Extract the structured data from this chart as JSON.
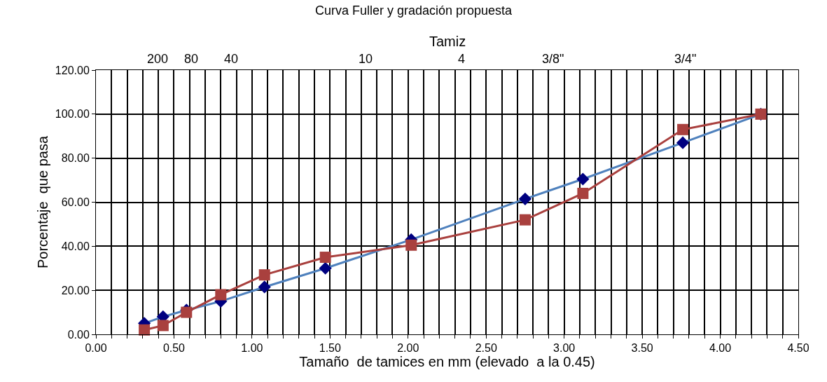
{
  "chart_data": {
    "type": "line",
    "title": "Curva Fuller y gradación propuesta",
    "xlabel": "Tamaño  de tamices en mm (elevado  a la 0.45)",
    "ylabel": "Porcentaje  que pasa",
    "annotations": [
      "Tamiz",
      "200",
      "80",
      "40",
      "10",
      "4",
      "3/8\"",
      "3/4\""
    ],
    "x": [
      0.31,
      0.43,
      0.58,
      0.8,
      1.08,
      1.47,
      2.02,
      2.75,
      3.12,
      3.76,
      4.26
    ],
    "series": [
      {
        "color": "#4f81bd",
        "marker": "diamond",
        "colors": [
          "#000080",
          "#000080",
          "#000080",
          "#000080",
          "#000080",
          "#000080",
          "#000080",
          "#000080",
          "#000080",
          "#000080",
          "#000080"
        ],
        "values": [
          5,
          8,
          11,
          15,
          21.5,
          30,
          43,
          61.5,
          70.5,
          87,
          100
        ]
      },
      {
        "color": "#a9403e",
        "marker": "square",
        "values": [
          2,
          4,
          10,
          18,
          27,
          35,
          40.5,
          52,
          64,
          93,
          100
        ]
      }
    ],
    "xlim": [
      0,
      4.5
    ],
    "xticks": [
      {
        "value": 0,
        "label": "0.00"
      },
      {
        "value": 0.1,
        "label": null
      },
      {
        "value": 0.2,
        "label": null
      },
      {
        "value": 0.3,
        "label": null
      },
      {
        "value": 0.4,
        "label": null
      },
      {
        "value": 0.5,
        "label": "0.50"
      },
      {
        "value": 0.6,
        "label": null
      },
      {
        "value": 0.7,
        "label": null
      },
      {
        "value": 0.8,
        "label": null
      },
      {
        "value": 0.9,
        "label": null
      },
      {
        "value": 1.0,
        "label": "1.00"
      },
      {
        "value": 1.1,
        "label": null
      },
      {
        "value": 1.2,
        "label": null
      },
      {
        "value": 1.3,
        "label": null
      },
      {
        "value": 1.4,
        "label": null
      },
      {
        "value": 1.5,
        "label": "1.50"
      },
      {
        "value": 1.6,
        "label": null
      },
      {
        "value": 1.7,
        "label": null
      },
      {
        "value": 1.8,
        "label": null
      },
      {
        "value": 1.9,
        "label": null
      },
      {
        "value": 2.0,
        "label": "2.00"
      },
      {
        "value": 2.1,
        "label": null
      },
      {
        "value": 2.2,
        "label": null
      },
      {
        "value": 2.3,
        "label": null
      },
      {
        "value": 2.4,
        "label": null
      },
      {
        "value": 2.5,
        "label": "2.50"
      },
      {
        "value": 2.6,
        "label": null
      },
      {
        "value": 2.7,
        "label": null
      },
      {
        "value": 2.8,
        "label": null
      },
      {
        "value": 2.9,
        "label": null
      },
      {
        "value": 3.0,
        "label": "3.00"
      },
      {
        "value": 3.1,
        "label": null
      },
      {
        "value": 3.2,
        "label": null
      },
      {
        "value": 3.3,
        "label": null
      },
      {
        "value": 3.4,
        "label": null
      },
      {
        "value": 3.5,
        "label": "3.50"
      },
      {
        "value": 3.6,
        "label": null
      },
      {
        "value": 3.7,
        "label": null
      },
      {
        "value": 3.8,
        "label": null
      },
      {
        "value": 3.9,
        "label": null
      },
      {
        "value": 4.0,
        "label": "4.00"
      },
      {
        "value": 4.1,
        "label": null
      },
      {
        "value": 4.2,
        "label": null
      },
      {
        "value": 4.3,
        "label": null
      },
      {
        "value": 4.4,
        "label": null
      },
      {
        "value": 4.5,
        "label": "4.50"
      }
    ],
    "ylim": [
      0,
      120
    ],
    "yticks": [
      {
        "value": 0,
        "label": "0.00"
      },
      {
        "value": 20,
        "label": "20.00"
      },
      {
        "value": 40,
        "label": "40.00"
      },
      {
        "value": 60,
        "label": "60.00"
      },
      {
        "value": 80,
        "label": "80.00"
      },
      {
        "value": 100,
        "label": "100.00"
      },
      {
        "value": 120,
        "label": "120.00"
      }
    ],
    "grid": true
  }
}
